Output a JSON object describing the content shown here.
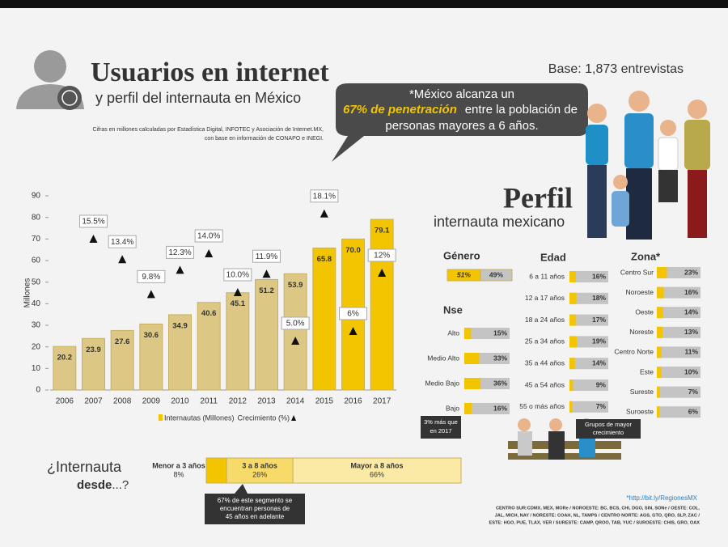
{
  "header": {
    "title": "Usuarios en internet",
    "subtitle": "y perfil del internauta en México",
    "note": [
      "Cifras en millones calculadas por Estadística Digital, INFOTEC y Asociación de Internet.MX,",
      "con base en información de CONAPO e INEGI."
    ],
    "base": "Base: 1,873 entrevistas",
    "callout": [
      "*México alcanza un",
      "67% de penetración",
      "entre la población de",
      "personas mayores a 6 años."
    ]
  },
  "perfil": {
    "title": "Perfil",
    "subtitle": "internauta mexicano"
  },
  "annotations": {
    "nse": [
      "3% más que",
      "en 2017"
    ],
    "edad": [
      "Grupos de mayor",
      "crecimiento"
    ],
    "desde": [
      "67% de este segmento se",
      "encuentran personas de",
      "45 años en adelante"
    ]
  },
  "footer": {
    "source": "*http://bit.ly/RegionesMX",
    "regions": [
      "CENTRO SUR:CDMX, MEX, MORe / NOROESTE: BC, BCS, CHI, DGO, SIN, SONe / OESTE: COL,",
      "JAL, MICH, NAY / NORESTE: COAH, NL, TAMPS / CENTRO NORTE: AGS, GTO, QRO, SLP, ZAC /",
      "ESTE: HGO, PUE, TLAX, VER / SURESTE: CAMP, QROO, TAB, YUC / SUROESTE: CHIS, GRO, OAX"
    ]
  },
  "chart_data": [
    {
      "type": "bar",
      "y_label": "Millones",
      "categories": [
        "2006",
        "2007",
        "2008",
        "2009",
        "2010",
        "2011",
        "2012",
        "2013",
        "2014",
        "2015",
        "2016",
        "2017"
      ],
      "ylim": [
        0,
        90
      ],
      "yticks": [
        0,
        10,
        20,
        30,
        40,
        50,
        60,
        70,
        80,
        90
      ],
      "y2lim": [
        0,
        20
      ],
      "series": [
        {
          "name": "Internautas (Millones)",
          "color": "#f2c500",
          "values": [
            20.2,
            23.9,
            27.6,
            30.6,
            34.9,
            40.6,
            45.1,
            51.2,
            53.9,
            65.8,
            70.0,
            79.1
          ],
          "value_labels": [
            "20.2",
            "23.9",
            "27.6",
            "30.6",
            "34.9",
            "40.6",
            "45.1",
            "51.2",
            "53.9",
            "65.8",
            "70.0",
            "79.1"
          ]
        },
        {
          "name": "Crecimiento (%)",
          "color": "#111111",
          "axis": "y2",
          "values": [
            null,
            15.5,
            13.4,
            9.8,
            12.3,
            14.0,
            10.0,
            11.9,
            5.0,
            18.1,
            6,
            12
          ],
          "value_labels": [
            null,
            "15.5%",
            "13.4%",
            "9.8%",
            "12.3%",
            "14.0%",
            "10.0%",
            "11.9%",
            "5.0%",
            "18.1%",
            "6%",
            "12%"
          ]
        }
      ]
    },
    {
      "type": "stacked_bar",
      "title": "Género",
      "values": [
        51,
        49
      ],
      "value_labels": [
        "51%",
        "49%"
      ],
      "colors": [
        "#f2c500",
        "#c4c4c4"
      ],
      "xlim": [
        0,
        100
      ]
    },
    {
      "type": "hbar",
      "title": "Edad",
      "categories": [
        "6 a 11 años",
        "12 a 17 años",
        "18 a 24 años",
        "25 a 34 años",
        "35 a 44 años",
        "45 a 54 años",
        "55 o más años"
      ],
      "values": [
        16,
        18,
        17,
        19,
        14,
        9,
        7
      ],
      "value_labels": [
        "16%",
        "18%",
        "17%",
        "19%",
        "14%",
        "9%",
        "7%"
      ],
      "color": "#f2c500",
      "xlim": [
        0,
        100
      ]
    },
    {
      "type": "hbar",
      "title": "Nse",
      "categories": [
        "Alto",
        "Medio Alto",
        "Medio Bajo",
        "Bajo"
      ],
      "values": [
        15,
        33,
        36,
        16
      ],
      "value_labels": [
        "15%",
        "33%",
        "36%",
        "16%"
      ],
      "color": "#f2c500",
      "xlim": [
        0,
        100
      ]
    },
    {
      "type": "hbar",
      "title": "Zona*",
      "categories": [
        "Centro Sur",
        "Noroeste",
        "Oeste",
        "Noreste",
        "Centro Norte",
        "Este",
        "Sureste",
        "Suroeste"
      ],
      "values": [
        23,
        16,
        14,
        13,
        11,
        10,
        7,
        6
      ],
      "value_labels": [
        "23%",
        "16%",
        "14%",
        "13%",
        "11%",
        "10%",
        "7%",
        "6%"
      ],
      "color": "#f2c500",
      "xlim": [
        0,
        100
      ]
    },
    {
      "type": "stacked_bar",
      "title": [
        "¿Internauta",
        "desde",
        "...?"
      ],
      "categories": [
        "Menor a 3 años",
        "3 a 8 años",
        "Mayor a 8 años"
      ],
      "values": [
        8,
        26,
        66
      ],
      "value_labels": [
        "8%",
        "26%",
        "66%"
      ],
      "colors": [
        "#f2c500",
        "#f7db6a",
        "#fbeaa5"
      ],
      "xlim": [
        0,
        100
      ]
    }
  ]
}
